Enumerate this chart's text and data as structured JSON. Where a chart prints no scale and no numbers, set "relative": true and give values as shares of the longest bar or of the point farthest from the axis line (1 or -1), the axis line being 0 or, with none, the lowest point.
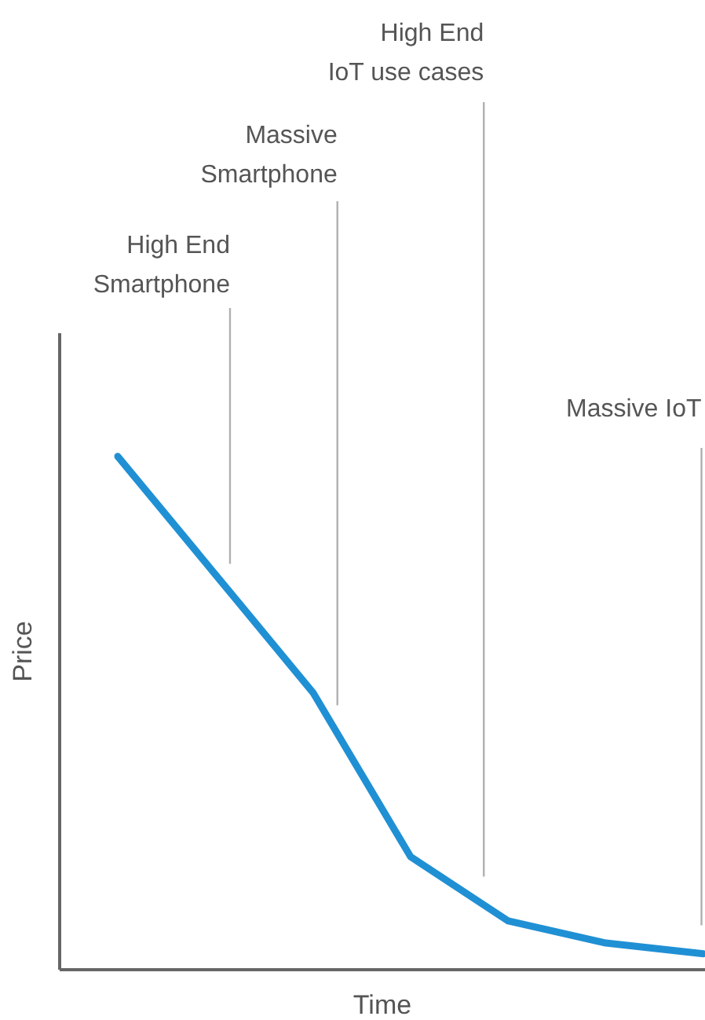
{
  "chart_data": {
    "type": "line",
    "relative": true,
    "xlabel": "Time",
    "ylabel": "Price",
    "categories": [
      null,
      null,
      null,
      null,
      null,
      null,
      null
    ],
    "series": [
      {
        "color": "#2090d4",
        "values": [
          1,
          0.77,
          0.54,
          0.22,
          0.095,
          0.052,
          0.031
        ]
      }
    ],
    "annotations": [
      "High End\nSmartphone",
      "Massive\nSmartphone",
      "High End\nIoT use cases",
      "Massive IoT"
    ]
  }
}
